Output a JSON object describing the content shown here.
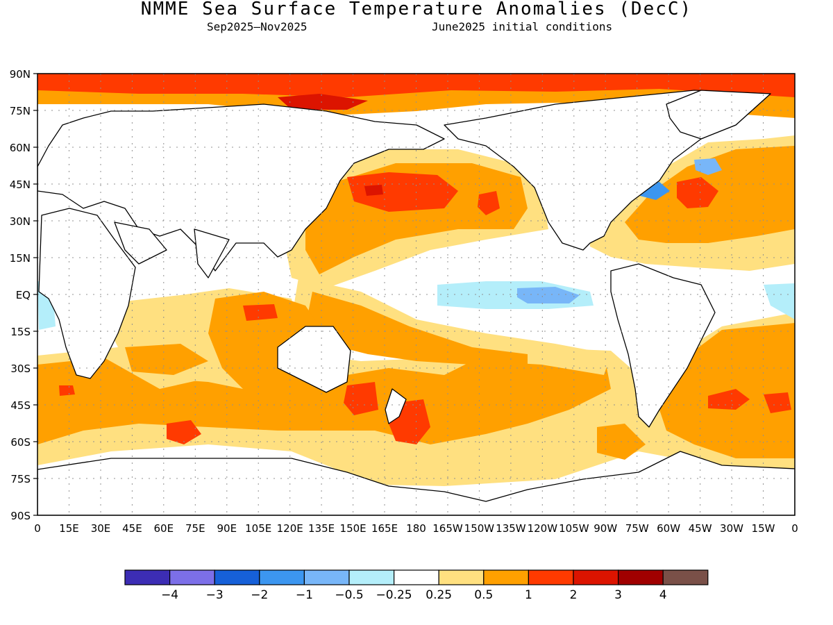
{
  "title": "NMME Sea Surface Temperature Anomalies (DecC)",
  "subtitle_period": "Sep2025–Nov2025",
  "subtitle_initial": "June2025 initial conditions",
  "map": {
    "lat_labels": [
      "90N",
      "75N",
      "60N",
      "45N",
      "30N",
      "15N",
      "EQ",
      "15S",
      "30S",
      "45S",
      "60S",
      "75S",
      "90S"
    ],
    "lon_labels": [
      "0",
      "15E",
      "30E",
      "45E",
      "60E",
      "75E",
      "90E",
      "105E",
      "120E",
      "135E",
      "150E",
      "165E",
      "180",
      "165W",
      "150W",
      "135W",
      "120W",
      "105W",
      "90W",
      "75W",
      "60W",
      "45W",
      "30W",
      "15W",
      "0"
    ],
    "grid": "dotted every 15 degrees",
    "land_color": "#ffffff",
    "coastline_color": "#000000"
  },
  "legend": {
    "breaks": [
      "−4",
      "−3",
      "−2",
      "−1",
      "−0.5",
      "−0.25",
      "0.25",
      "0.5",
      "1",
      "2",
      "3",
      "4"
    ],
    "colors": [
      "#3c2db4",
      "#7c6fe8",
      "#1660d8",
      "#3c96f0",
      "#78b6f8",
      "#b4eefa",
      "#ffffff",
      "#ffe080",
      "#ffa000",
      "#ff3a00",
      "#dc1400",
      "#a00000",
      "#7a5048"
    ]
  }
}
